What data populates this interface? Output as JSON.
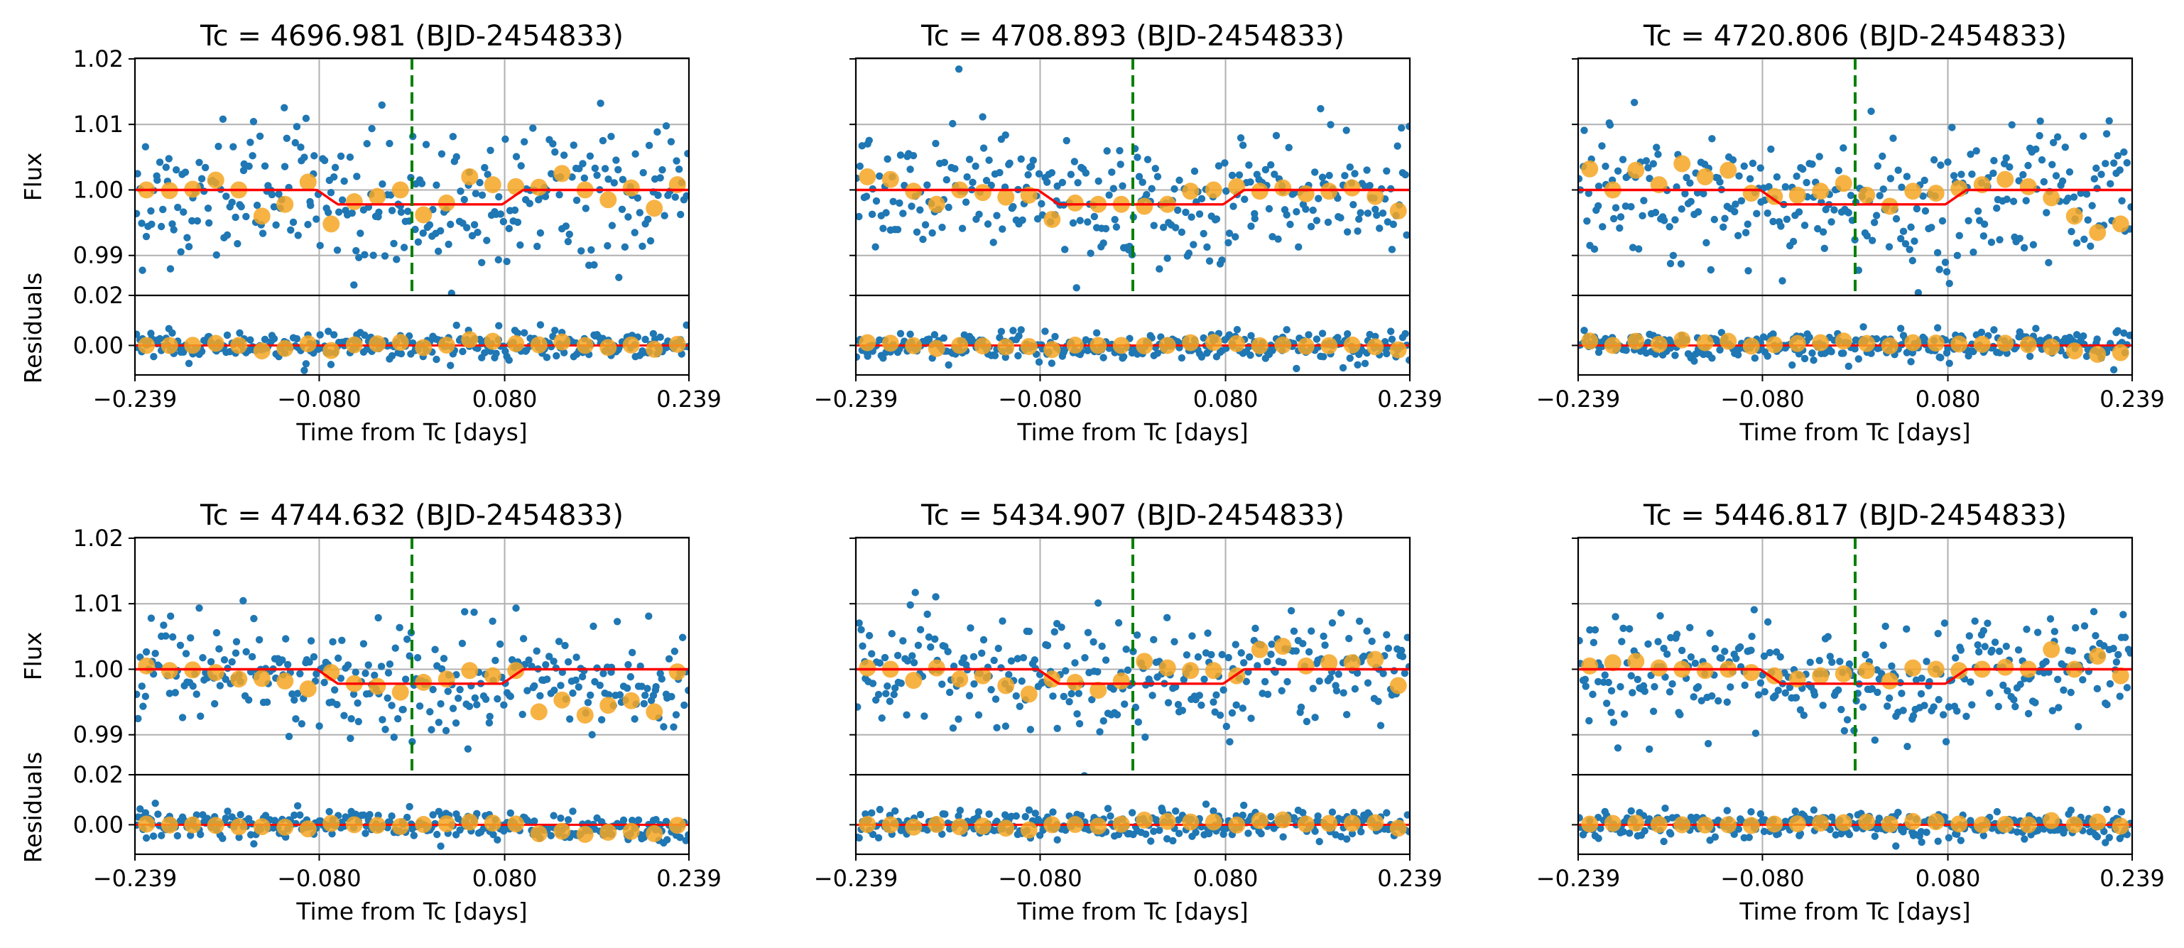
{
  "chart_data": {
    "type": "scatter",
    "layout": "2x3 grid of panels, each a flux panel above a residuals panel",
    "xlabel": "Time from Tc [days]",
    "ylabel_flux": "Flux",
    "ylabel_residuals": "Residuals",
    "xlim": [
      -0.239,
      0.239
    ],
    "xticks": [
      -0.239,
      -0.08,
      0.08,
      0.239
    ],
    "xtick_labels": [
      "−0.239",
      "−0.080",
      "0.080",
      "0.239"
    ],
    "flux_ylim": [
      0.9839,
      1.0201
    ],
    "flux_yticks": [
      0.99,
      1.0,
      1.01,
      1.02
    ],
    "flux_ytick_labels": [
      "0.99",
      "1.00",
      "1.01",
      "1.02"
    ],
    "resid_ylim": [
      -0.0118,
      0.02
    ],
    "resid_yticks": [
      0.0,
      0.02
    ],
    "resid_ytick_labels": [
      "0.00",
      "0.02"
    ],
    "series": [
      {
        "name": "data",
        "kind": "scatter",
        "color": "#1f77b4"
      },
      {
        "name": "binned",
        "kind": "scatter",
        "color": "#f5a623"
      },
      {
        "name": "transit model",
        "kind": "line",
        "color": "#ff0000"
      },
      {
        "name": "Tc marker",
        "kind": "vline",
        "color": "#008000",
        "x": 0
      }
    ],
    "transit": {
      "depth": 0.0022,
      "ingress": -0.082,
      "egress": 0.078,
      "duration_ingress": 0.018
    },
    "panels": [
      {
        "title": "Tc = 4696.981 (BJD-2454833)",
        "seed": 11,
        "scatter": 0.0055,
        "trend": 0.0,
        "binned_flux": [
          1.0,
          0.9999,
          1.0001,
          1.0015,
          1.0,
          0.996,
          0.9978,
          1.0012,
          0.9948,
          0.9982,
          0.999,
          1.0,
          0.9962,
          0.998,
          1.002,
          1.0008,
          1.0005,
          1.0004,
          1.0025,
          1.0,
          0.9985,
          1.0003,
          0.9972,
          1.0008
        ]
      },
      {
        "title": "Tc = 4708.893 (BJD-2454833)",
        "seed": 23,
        "scatter": 0.0045,
        "trend": 0.0,
        "binned_flux": [
          1.002,
          1.0016,
          0.9998,
          0.9978,
          1.0,
          0.9996,
          0.9989,
          0.9992,
          0.9955,
          0.998,
          0.9978,
          0.9978,
          0.9975,
          0.9978,
          0.9998,
          1.0,
          1.0005,
          0.9998,
          1.0003,
          0.9994,
          0.9998,
          1.0003,
          0.999,
          0.9968
        ]
      },
      {
        "title": "Tc = 4720.806 (BJD-2454833)",
        "seed": 37,
        "scatter": 0.005,
        "trend": 0.0,
        "binned_flux": [
          1.0032,
          1.0,
          1.003,
          1.0008,
          1.004,
          1.002,
          1.003,
          0.9995,
          0.999,
          0.9992,
          0.9998,
          1.001,
          0.9992,
          0.9975,
          0.9998,
          0.9995,
          1.0002,
          1.0008,
          1.0016,
          1.0005,
          0.9988,
          0.996,
          0.9935,
          0.9948
        ]
      },
      {
        "title": "Tc = 4744.632 (BJD-2454833)",
        "seed": 41,
        "scatter": 0.004,
        "trend": -0.003,
        "binned_flux": [
          1.0005,
          0.9998,
          0.9999,
          0.9995,
          0.9985,
          0.9986,
          0.9982,
          0.997,
          0.9995,
          0.9978,
          0.9974,
          0.9965,
          0.998,
          0.9985,
          0.9998,
          0.999,
          0.9998,
          0.9935,
          0.9953,
          0.993,
          0.9945,
          0.9952,
          0.9935,
          0.9996
        ]
      },
      {
        "title": "Tc = 5434.907 (BJD-2454833)",
        "seed": 59,
        "scatter": 0.0045,
        "trend": 0.001,
        "binned_flux": [
          1.0002,
          1.0,
          0.9983,
          1.0002,
          0.9985,
          0.999,
          0.9975,
          0.9962,
          0.9985,
          0.998,
          0.9968,
          0.9982,
          1.0012,
          1.0002,
          0.9998,
          0.9998,
          0.999,
          1.003,
          1.0035,
          1.0005,
          1.001,
          1.001,
          1.0015,
          0.9975
        ]
      },
      {
        "title": "Tc = 5446.817 (BJD-2454833)",
        "seed": 67,
        "scatter": 0.004,
        "trend": 0.0,
        "binned_flux": [
          1.0005,
          1.001,
          1.0012,
          1.0002,
          1.0,
          0.9998,
          1.0,
          0.9995,
          0.999,
          0.9985,
          0.999,
          0.9993,
          0.9998,
          0.9982,
          1.0002,
          1.0,
          0.9998,
          1.0,
          1.0003,
          1.0,
          1.003,
          1.0,
          1.002,
          0.999
        ]
      }
    ]
  }
}
